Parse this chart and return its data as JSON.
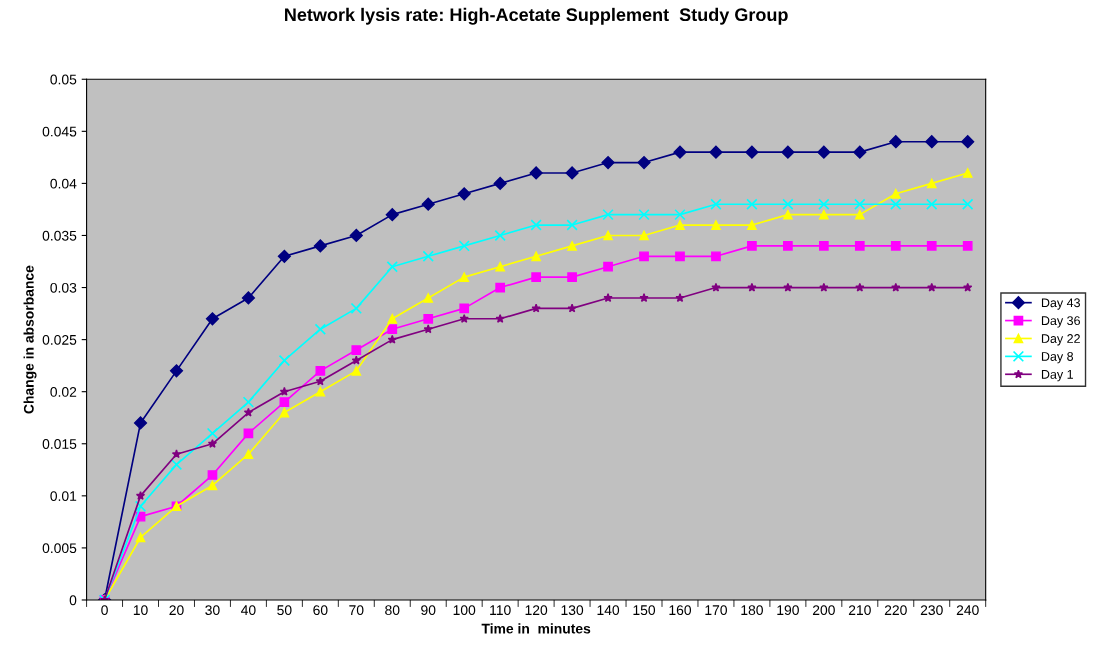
{
  "chart_data": {
    "type": "line",
    "title": "Network lysis rate: High-Acetate Supplement  Study Group",
    "xlabel": "Time in  minutes",
    "ylabel": "Change in absorbance",
    "categories": [
      "0",
      "10",
      "20",
      "30",
      "40",
      "50",
      "60",
      "70",
      "80",
      "90",
      "100",
      "110",
      "120",
      "130",
      "140",
      "150",
      "160",
      "170",
      "180",
      "190",
      "200",
      "210",
      "220",
      "230",
      "240"
    ],
    "ylim": [
      0,
      0.05
    ],
    "yticks": [
      0,
      0.005,
      0.01,
      0.015,
      0.02,
      0.025,
      0.03,
      0.035,
      0.04,
      0.045,
      0.05
    ],
    "grid": false,
    "legend": "right",
    "series": [
      {
        "name": "Day 43",
        "color": "#000080",
        "marker": "diamond",
        "values": [
          0,
          0.017,
          0.022,
          0.027,
          0.029,
          0.033,
          0.034,
          0.035,
          0.037,
          0.038,
          0.039,
          0.04,
          0.041,
          0.041,
          0.042,
          0.042,
          0.043,
          0.043,
          0.043,
          0.043,
          0.043,
          0.043,
          0.044,
          0.044,
          0.044
        ]
      },
      {
        "name": "Day 36",
        "color": "#ff00ff",
        "marker": "square",
        "values": [
          0,
          0.008,
          0.009,
          0.012,
          0.016,
          0.019,
          0.022,
          0.024,
          0.026,
          0.027,
          0.028,
          0.03,
          0.031,
          0.031,
          0.032,
          0.033,
          0.033,
          0.033,
          0.034,
          0.034,
          0.034,
          0.034,
          0.034,
          0.034,
          0.034
        ]
      },
      {
        "name": "Day 22",
        "color": "#ffff00",
        "marker": "triangle",
        "values": [
          0,
          0.006,
          0.009,
          0.011,
          0.014,
          0.018,
          0.02,
          0.022,
          0.027,
          0.029,
          0.031,
          0.032,
          0.033,
          0.034,
          0.035,
          0.035,
          0.036,
          0.036,
          0.036,
          0.037,
          0.037,
          0.037,
          0.039,
          0.04,
          0.041
        ]
      },
      {
        "name": "Day 8",
        "color": "#00ffff",
        "marker": "cross",
        "values": [
          0,
          0.009,
          0.013,
          0.016,
          0.019,
          0.023,
          0.026,
          0.028,
          0.032,
          0.033,
          0.034,
          0.035,
          0.036,
          0.036,
          0.037,
          0.037,
          0.037,
          0.038,
          0.038,
          0.038,
          0.038,
          0.038,
          0.038,
          0.038,
          0.038
        ]
      },
      {
        "name": "Day 1",
        "color": "#800080",
        "marker": "star",
        "values": [
          0,
          0.01,
          0.014,
          0.015,
          0.018,
          0.02,
          0.021,
          0.023,
          0.025,
          0.026,
          0.027,
          0.027,
          0.028,
          0.028,
          0.029,
          0.029,
          0.029,
          0.03,
          0.03,
          0.03,
          0.03,
          0.03,
          0.03,
          0.03,
          0.03
        ]
      }
    ]
  }
}
